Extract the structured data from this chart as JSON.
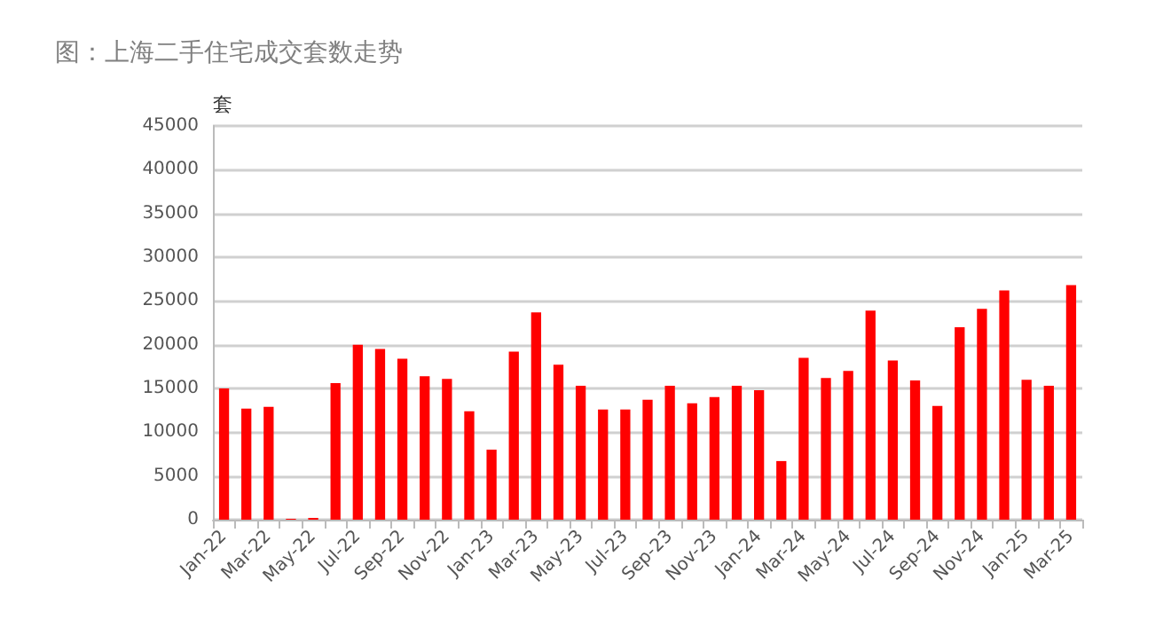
{
  "chart_data": {
    "type": "bar",
    "title": "图：上海二手住宅成交套数走势",
    "ylabel": "套",
    "categories": [
      "Jan-22",
      null,
      "Mar-22",
      null,
      "May-22",
      null,
      "Jul-22",
      null,
      "Sep-22",
      null,
      "Nov-22",
      null,
      "Jan-23",
      null,
      "Mar-23",
      null,
      "May-23",
      null,
      "Jul-23",
      null,
      "Sep-23",
      null,
      "Nov-23",
      null,
      "Jan-24",
      null,
      "Mar-24",
      null,
      "May-24",
      null,
      "Jul-24",
      null,
      "Sep-24",
      null,
      "Nov-24",
      null,
      "Jan-25",
      null,
      "Mar-25"
    ],
    "values": [
      15000,
      12700,
      12900,
      100,
      200,
      15600,
      20000,
      19500,
      18400,
      16400,
      16100,
      12400,
      8000,
      19200,
      23700,
      17700,
      15300,
      12600,
      12600,
      13700,
      15300,
      13300,
      14000,
      15300,
      14800,
      6700,
      18500,
      16200,
      17000,
      23900,
      18200,
      15900,
      13000,
      22000,
      24100,
      26200,
      16000,
      15300,
      26800
    ],
    "color": "#ff0000",
    "ylim": [
      0,
      45000
    ],
    "yticks": [
      0,
      5000,
      10000,
      15000,
      20000,
      25000,
      30000,
      35000,
      40000,
      45000
    ],
    "grid": "y"
  }
}
